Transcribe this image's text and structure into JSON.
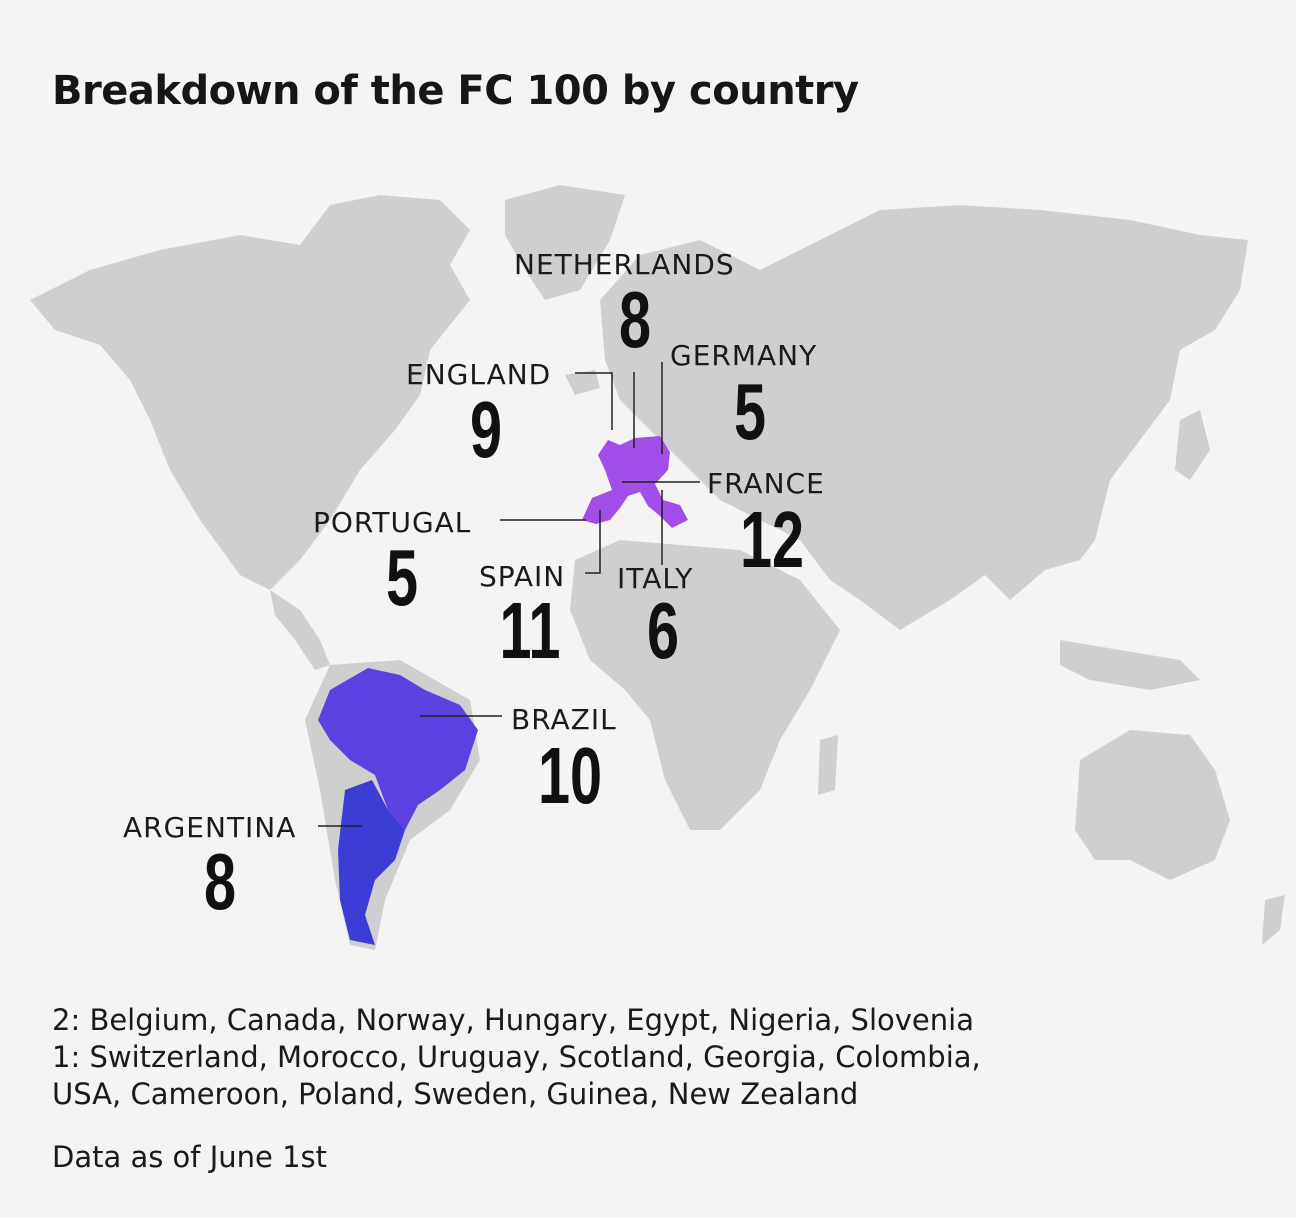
{
  "title": "Breakdown of the FC 100 by country",
  "colors": {
    "land": "#cfcfcf",
    "europe": "#a24ee8",
    "brazil": "#5c40e0",
    "argentina": "#3d3dd6",
    "background": "#f4f4f4"
  },
  "countries": [
    {
      "name": "NETHERLANDS",
      "count": "8"
    },
    {
      "name": "ENGLAND",
      "count": "9"
    },
    {
      "name": "GERMANY",
      "count": "5"
    },
    {
      "name": "FRANCE",
      "count": "12"
    },
    {
      "name": "PORTUGAL",
      "count": "5"
    },
    {
      "name": "SPAIN",
      "count": "11"
    },
    {
      "name": "ITALY",
      "count": "6"
    },
    {
      "name": "BRAZIL",
      "count": "10"
    },
    {
      "name": "ARGENTINA",
      "count": "8"
    }
  ],
  "footer": {
    "line1": "2: Belgium, Canada, Norway, Hungary, Egypt, Nigeria, Slovenia",
    "line2": "1: Switzerland, Morocco, Uruguay, Scotland, Georgia, Colombia,",
    "line3": "USA, Cameroon, Poland, Sweden, Guinea, New Zealand",
    "note": "Data as of June 1st"
  }
}
